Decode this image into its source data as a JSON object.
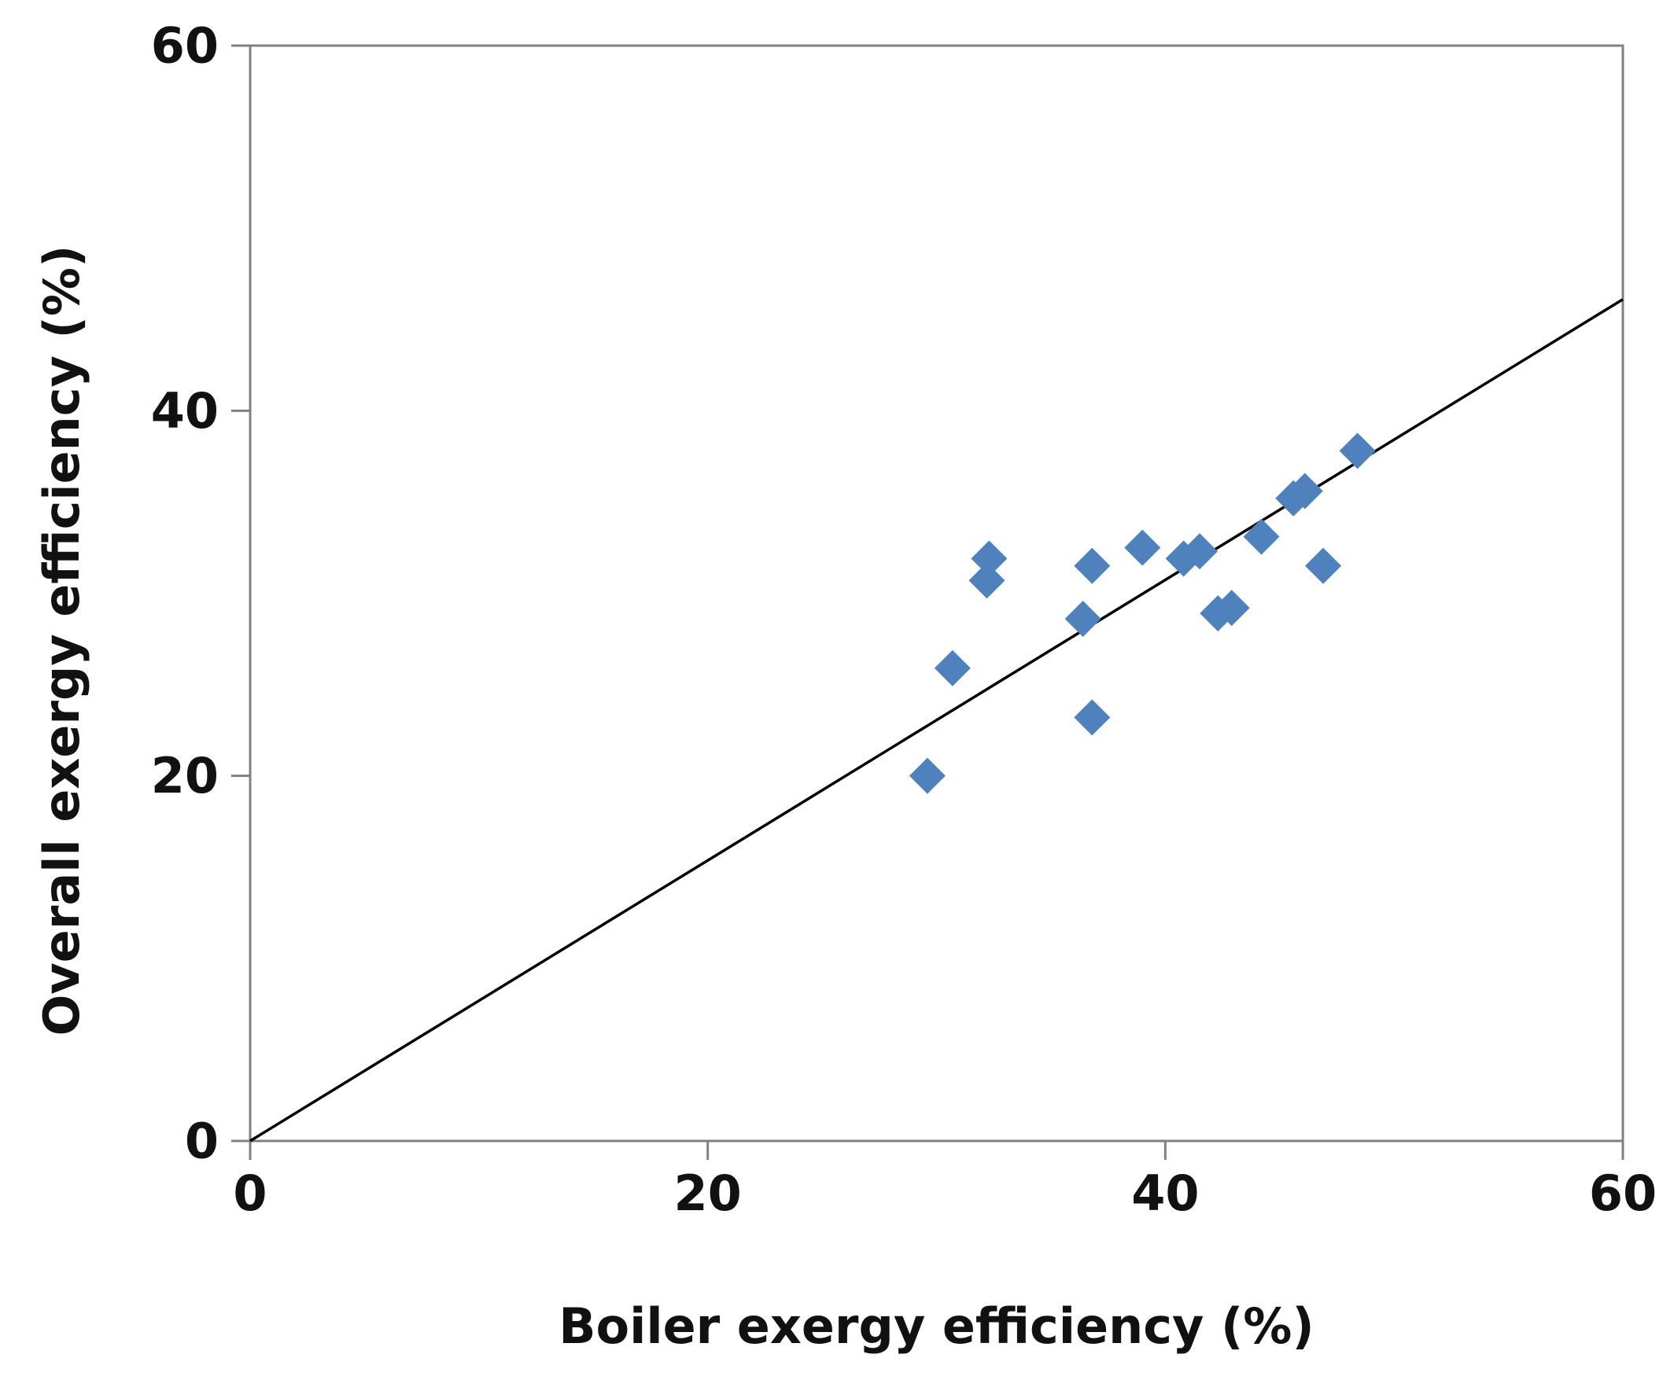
{
  "chart_data": {
    "type": "scatter",
    "title": "",
    "xlabel": "Boiler exergy efficiency (%)",
    "ylabel": "Overall exergy efficiency (%)",
    "xlim": [
      0,
      60
    ],
    "ylim": [
      0,
      60
    ],
    "xticks": [
      0,
      20,
      40,
      60
    ],
    "yticks": [
      0,
      20,
      40,
      60
    ],
    "xtick_labels": [
      "0",
      "20",
      "40",
      "60"
    ],
    "ytick_labels": [
      "0",
      "20",
      "40",
      "60"
    ],
    "grid": false,
    "series": [
      {
        "name": "data",
        "marker": "diamond",
        "color": "#4f81bd",
        "points": [
          {
            "x": 29.6,
            "y": 20.0
          },
          {
            "x": 30.7,
            "y": 25.9
          },
          {
            "x": 32.2,
            "y": 30.7
          },
          {
            "x": 32.3,
            "y": 31.9
          },
          {
            "x": 36.4,
            "y": 28.6
          },
          {
            "x": 36.8,
            "y": 23.2
          },
          {
            "x": 36.8,
            "y": 31.5
          },
          {
            "x": 39.0,
            "y": 32.5
          },
          {
            "x": 40.8,
            "y": 31.9
          },
          {
            "x": 41.5,
            "y": 32.3
          },
          {
            "x": 42.3,
            "y": 28.9
          },
          {
            "x": 42.9,
            "y": 29.2
          },
          {
            "x": 44.2,
            "y": 33.1
          },
          {
            "x": 45.6,
            "y": 35.2
          },
          {
            "x": 46.1,
            "y": 35.6
          },
          {
            "x": 46.9,
            "y": 31.5
          },
          {
            "x": 48.4,
            "y": 37.8
          }
        ]
      },
      {
        "name": "fit",
        "type": "line",
        "color": "#000000",
        "points": [
          {
            "x": 0,
            "y": 0
          },
          {
            "x": 60,
            "y": 46.1
          }
        ]
      }
    ]
  }
}
